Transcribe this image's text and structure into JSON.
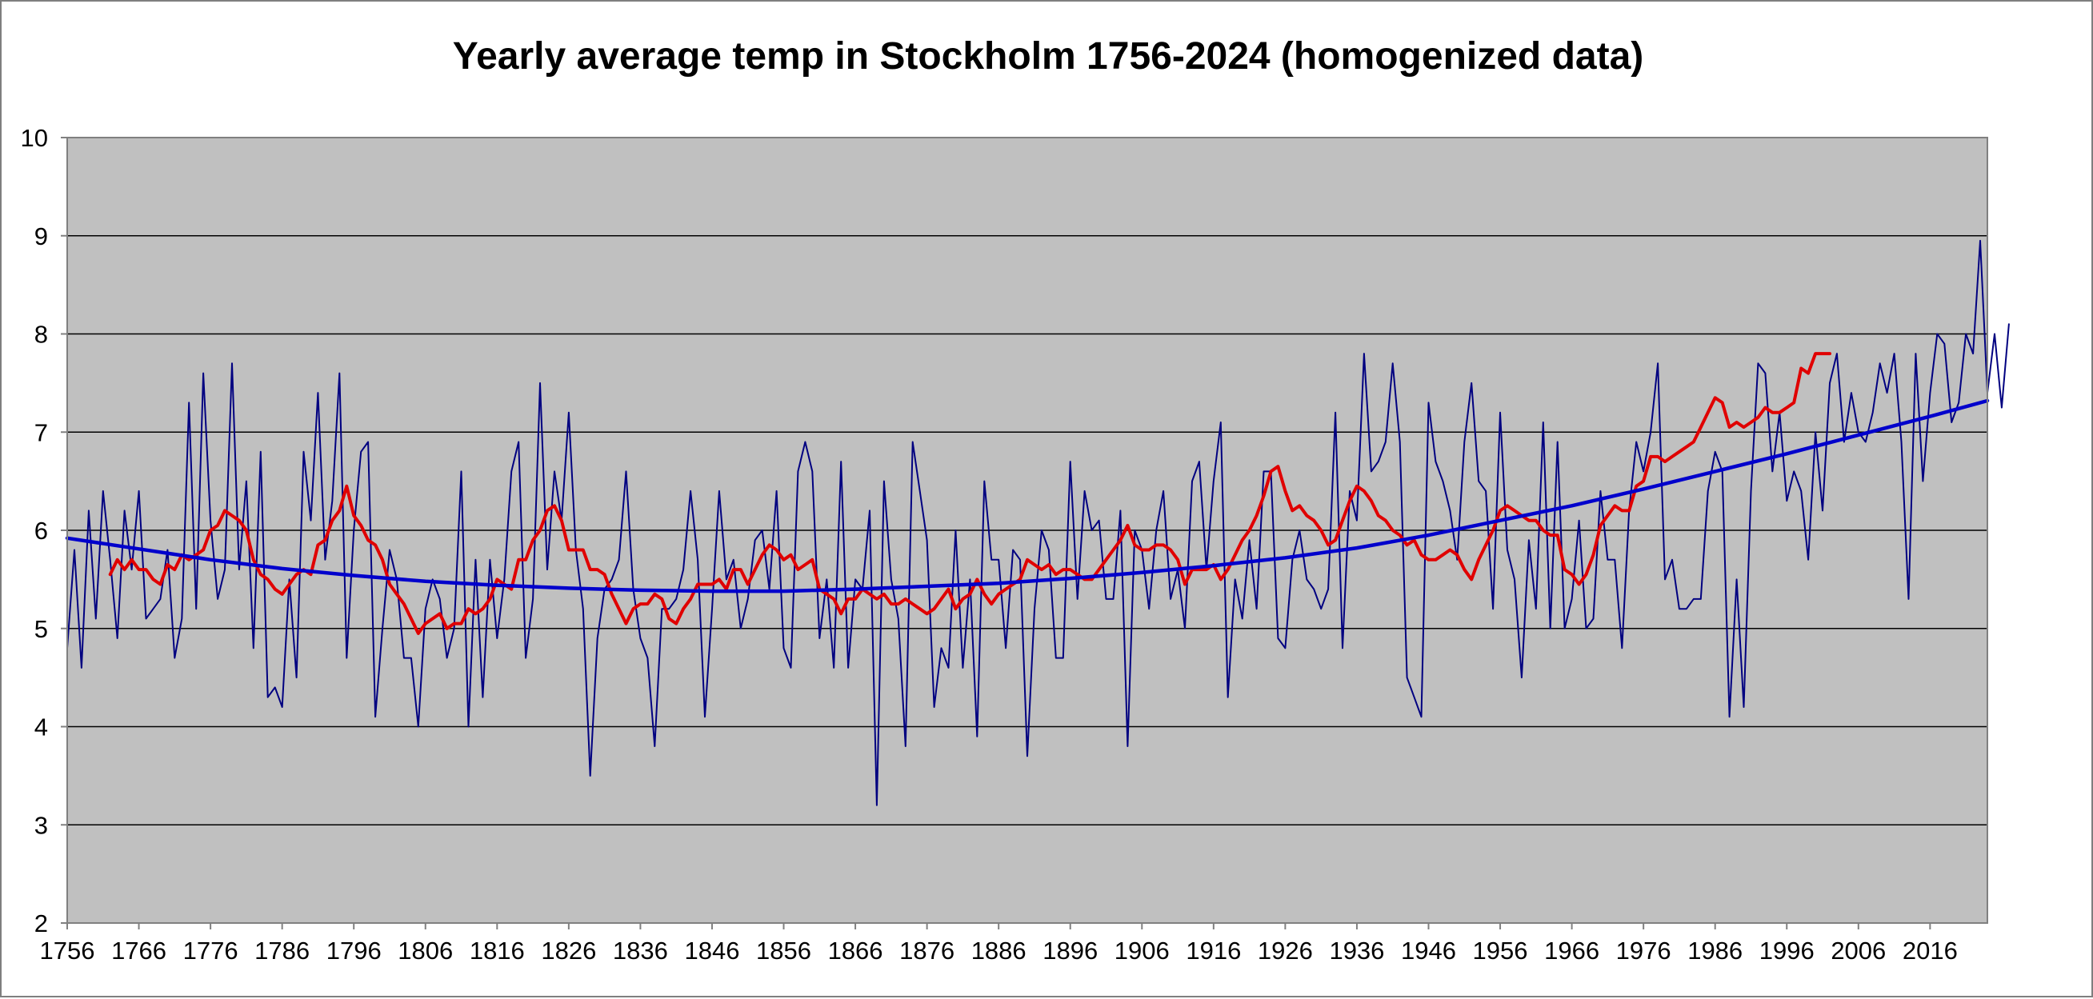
{
  "chart_data": {
    "type": "line",
    "title": "Yearly average temp in Stockholm 1756-2024 (homogenized data)",
    "xlabel": "",
    "ylabel": "",
    "xlim": [
      1756,
      2024
    ],
    "ylim": [
      2,
      10
    ],
    "x_ticks": [
      1756,
      1766,
      1776,
      1786,
      1796,
      1806,
      1816,
      1826,
      1836,
      1846,
      1856,
      1866,
      1876,
      1886,
      1896,
      1906,
      1916,
      1926,
      1936,
      1946,
      1956,
      1966,
      1976,
      1986,
      1996,
      2006,
      2016
    ],
    "y_ticks": [
      2,
      3,
      4,
      5,
      6,
      7,
      8,
      9,
      10
    ],
    "grid": "horizontal",
    "legend": "none",
    "colors": {
      "plot_background": "#c0c0c0",
      "gridline": "#000000",
      "yearly": "#000080",
      "moving_average": "#e00000",
      "trend": "#0000cc"
    },
    "series": [
      {
        "role": "yearly",
        "x_start": 1756,
        "values": [
          4.8,
          5.8,
          4.6,
          6.2,
          5.1,
          6.4,
          5.7,
          4.9,
          6.2,
          5.6,
          6.4,
          5.1,
          5.2,
          5.3,
          5.8,
          4.7,
          5.1,
          7.3,
          5.2,
          7.6,
          6.1,
          5.3,
          5.6,
          7.7,
          5.6,
          6.5,
          4.8,
          6.8,
          4.3,
          4.4,
          4.2,
          5.5,
          4.5,
          6.8,
          6.1,
          7.4,
          5.7,
          6.3,
          7.6,
          4.7,
          6.0,
          6.8,
          6.9,
          4.1,
          5.0,
          5.8,
          5.5,
          4.7,
          4.7,
          4.0,
          5.2,
          5.5,
          5.3,
          4.7,
          5.0,
          6.6,
          4.0,
          5.7,
          4.3,
          5.7,
          4.9,
          5.5,
          6.6,
          6.9,
          4.7,
          5.3,
          7.5,
          5.6,
          6.6,
          6.1,
          7.2,
          5.8,
          5.2,
          3.5,
          4.9,
          5.4,
          5.5,
          5.7,
          6.6,
          5.4,
          4.9,
          4.7,
          3.8,
          5.2,
          5.2,
          5.3,
          5.6,
          6.4,
          5.7,
          4.1,
          5.2,
          6.4,
          5.5,
          5.7,
          5.0,
          5.3,
          5.9,
          6.0,
          5.4,
          6.4,
          4.8,
          4.6,
          6.6,
          6.9,
          6.6,
          4.9,
          5.5,
          4.6,
          6.7,
          4.6,
          5.5,
          5.4,
          6.2,
          3.2,
          6.5,
          5.5,
          5.1,
          3.8,
          6.9,
          6.4,
          5.9,
          4.2,
          4.8,
          4.6,
          6.0,
          4.6,
          5.5,
          3.9,
          6.5,
          5.7,
          5.7,
          4.8,
          5.8,
          5.7,
          3.7,
          5.2,
          6.0,
          5.8,
          4.7,
          4.7,
          6.7,
          5.3,
          6.4,
          6.0,
          6.1,
          5.3,
          5.3,
          6.2,
          3.8,
          6.0,
          5.8,
          5.2,
          6.0,
          6.4,
          5.3,
          5.6,
          5.0,
          6.5,
          6.7,
          5.6,
          6.5,
          7.1,
          4.3,
          5.5,
          5.1,
          5.9,
          5.2,
          6.6,
          6.6,
          4.9,
          4.8,
          5.7,
          6.0,
          5.5,
          5.4,
          5.2,
          5.4,
          7.2,
          4.8,
          6.4,
          6.1,
          7.8,
          6.6,
          6.7,
          6.9,
          7.7,
          6.9,
          4.5,
          4.3,
          4.1,
          7.3,
          6.7,
          6.5,
          6.2,
          5.7,
          6.9,
          7.5,
          6.5,
          6.4,
          5.2,
          7.2,
          5.8,
          5.5,
          4.5,
          5.9,
          5.2,
          7.1,
          5.0,
          6.9,
          5.0,
          5.3,
          6.1,
          5.0,
          5.1,
          6.4,
          5.7,
          5.7,
          4.8,
          6.2,
          6.9,
          6.6,
          7.0,
          7.7,
          5.5,
          5.7,
          5.2,
          5.2,
          5.3,
          5.3,
          6.4,
          6.8,
          6.6,
          4.1,
          5.5,
          4.2,
          6.4,
          7.7,
          7.6,
          6.6,
          7.2,
          6.3,
          6.6,
          6.4,
          5.7,
          7.0,
          6.2,
          7.5,
          7.8,
          6.9,
          7.4,
          7.0,
          6.9,
          7.2,
          7.7,
          7.4,
          7.8,
          6.9,
          5.3,
          7.8,
          6.5,
          7.4,
          8.0,
          7.9,
          7.1,
          7.3,
          8.0,
          7.8,
          8.95,
          7.4,
          8.0,
          7.25,
          8.1
        ]
      },
      {
        "role": "moving_average",
        "x_start": 1762,
        "values": [
          5.55,
          5.7,
          5.6,
          5.7,
          5.6,
          5.6,
          5.5,
          5.45,
          5.65,
          5.6,
          5.75,
          5.7,
          5.75,
          5.8,
          6.0,
          6.05,
          6.2,
          6.15,
          6.1,
          6.0,
          5.7,
          5.55,
          5.5,
          5.4,
          5.35,
          5.45,
          5.55,
          5.6,
          5.55,
          5.85,
          5.9,
          6.1,
          6.2,
          6.45,
          6.15,
          6.05,
          5.9,
          5.85,
          5.7,
          5.45,
          5.35,
          5.25,
          5.1,
          4.95,
          5.05,
          5.1,
          5.15,
          5.0,
          5.05,
          5.05,
          5.2,
          5.15,
          5.2,
          5.3,
          5.5,
          5.45,
          5.4,
          5.7,
          5.7,
          5.9,
          6.0,
          6.2,
          6.25,
          6.1,
          5.8,
          5.8,
          5.8,
          5.6,
          5.6,
          5.55,
          5.35,
          5.2,
          5.05,
          5.2,
          5.25,
          5.25,
          5.35,
          5.3,
          5.1,
          5.05,
          5.2,
          5.3,
          5.45,
          5.45,
          5.45,
          5.5,
          5.4,
          5.6,
          5.6,
          5.45,
          5.6,
          5.75,
          5.85,
          5.8,
          5.7,
          5.75,
          5.6,
          5.65,
          5.7,
          5.4,
          5.35,
          5.3,
          5.15,
          5.3,
          5.3,
          5.4,
          5.35,
          5.3,
          5.35,
          5.25,
          5.25,
          5.3,
          5.25,
          5.2,
          5.15,
          5.2,
          5.3,
          5.4,
          5.2,
          5.3,
          5.35,
          5.5,
          5.35,
          5.25,
          5.35,
          5.4,
          5.45,
          5.5,
          5.7,
          5.65,
          5.6,
          5.65,
          5.55,
          5.6,
          5.6,
          5.55,
          5.5,
          5.5,
          5.6,
          5.7,
          5.8,
          5.9,
          6.05,
          5.85,
          5.8,
          5.8,
          5.85,
          5.85,
          5.8,
          5.7,
          5.45,
          5.6,
          5.6,
          5.6,
          5.65,
          5.5,
          5.6,
          5.75,
          5.9,
          6.0,
          6.15,
          6.35,
          6.6,
          6.65,
          6.4,
          6.2,
          6.25,
          6.15,
          6.1,
          6.0,
          5.85,
          5.9,
          6.1,
          6.3,
          6.45,
          6.4,
          6.3,
          6.15,
          6.1,
          6.0,
          5.95,
          5.85,
          5.9,
          5.75,
          5.7,
          5.7,
          5.75,
          5.8,
          5.75,
          5.6,
          5.5,
          5.7,
          5.85,
          6.0,
          6.2,
          6.25,
          6.2,
          6.15,
          6.1,
          6.1,
          6.0,
          5.95,
          5.95,
          5.6,
          5.55,
          5.45,
          5.55,
          5.75,
          6.05,
          6.15,
          6.25,
          6.2,
          6.2,
          6.45,
          6.5,
          6.75,
          6.75,
          6.7,
          6.75,
          6.8,
          6.85,
          6.9,
          7.05,
          7.2,
          7.35,
          7.3,
          7.05,
          7.1,
          7.05,
          7.1,
          7.15,
          7.25,
          7.2,
          7.2,
          7.25,
          7.3,
          7.65,
          7.6,
          7.8,
          7.8,
          7.8
        ]
      },
      {
        "role": "trend",
        "x": [
          1756,
          1766,
          1776,
          1786,
          1796,
          1806,
          1816,
          1826,
          1836,
          1846,
          1856,
          1866,
          1876,
          1886,
          1896,
          1906,
          1916,
          1926,
          1936,
          1946,
          1956,
          1966,
          1976,
          1986,
          1996,
          2006,
          2016,
          2024
        ],
        "values": [
          5.92,
          5.81,
          5.7,
          5.61,
          5.54,
          5.48,
          5.44,
          5.41,
          5.39,
          5.38,
          5.38,
          5.4,
          5.43,
          5.46,
          5.51,
          5.57,
          5.64,
          5.72,
          5.82,
          5.95,
          6.1,
          6.25,
          6.42,
          6.6,
          6.78,
          6.97,
          7.16,
          7.32
        ]
      }
    ]
  }
}
